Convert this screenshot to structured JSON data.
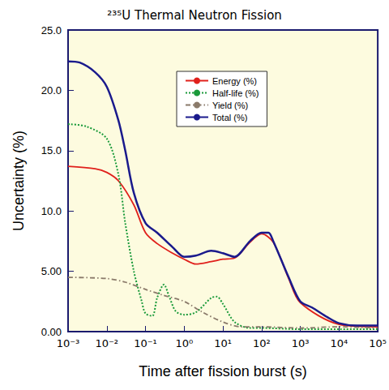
{
  "chart_data": {
    "type": "line",
    "title": "²³⁵U Thermal Neutron Fission",
    "x_label": "Time after fission burst (s)",
    "y_label": "Uncertainty (%)",
    "log": "x",
    "grid": false,
    "legend": "upper center",
    "xlim": [
      0.001,
      100000
    ],
    "xticks": [
      {
        "value": 0.001,
        "label": "10⁻³"
      },
      {
        "value": 0.01,
        "label": "10⁻²"
      },
      {
        "value": 0.1,
        "label": "10⁻¹"
      },
      {
        "value": 1,
        "label": "10⁰"
      },
      {
        "value": 10,
        "label": "10¹"
      },
      {
        "value": 100,
        "label": "10²"
      },
      {
        "value": 1000,
        "label": "10³"
      },
      {
        "value": 10000,
        "label": "10⁴"
      },
      {
        "value": 100000,
        "label": "10⁵"
      }
    ],
    "ylim": [
      0,
      25
    ],
    "yticks": [
      {
        "value": 0,
        "label": "0.00"
      },
      {
        "value": 5,
        "label": "5.00"
      },
      {
        "value": 10,
        "label": "10.0"
      },
      {
        "value": 15,
        "label": "15.0"
      },
      {
        "value": 20,
        "label": "20.0"
      },
      {
        "value": 25,
        "label": "25.0"
      }
    ],
    "series": [
      {
        "name": "Energy (%)",
        "color": "#e0201b",
        "line_style": "solid",
        "x": [
          0.001,
          0.005,
          0.01,
          0.02,
          0.05,
          0.1,
          0.2,
          0.5,
          1,
          2,
          5,
          10,
          20,
          50,
          100,
          200,
          500,
          1000,
          10000,
          100000
        ],
        "values": [
          13.7,
          13.5,
          13.2,
          12.5,
          10.5,
          8.2,
          7.3,
          6.5,
          6.0,
          5.6,
          5.8,
          6.0,
          6.1,
          7.4,
          8.1,
          7.4,
          4.4,
          2.4,
          0.6,
          0.4
        ]
      },
      {
        "name": "Half-life (%)",
        "color": "#1a9a3a",
        "line_style": "dotted",
        "x": [
          0.001,
          0.003,
          0.01,
          0.02,
          0.03,
          0.05,
          0.08,
          0.1,
          0.15,
          0.2,
          0.3,
          0.4,
          0.6,
          1,
          2,
          5,
          7,
          10,
          20,
          50,
          100,
          1000,
          10000,
          100000
        ],
        "values": [
          17.2,
          17.0,
          16.0,
          13.0,
          9.0,
          5.0,
          2.5,
          1.5,
          1.3,
          2.8,
          3.9,
          3.0,
          1.7,
          1.4,
          1.6,
          2.8,
          2.9,
          2.3,
          0.8,
          0.3,
          0.3,
          0.2,
          0.2,
          0.2
        ]
      },
      {
        "name": "Yield (%)",
        "color": "#8a7a6a",
        "line_style": "dashdot",
        "x": [
          0.001,
          0.01,
          0.03,
          0.1,
          0.3,
          1,
          3,
          10,
          30,
          100,
          1000,
          10000,
          100000
        ],
        "values": [
          4.5,
          4.4,
          4.1,
          3.5,
          3.0,
          2.5,
          1.6,
          0.8,
          0.4,
          0.4,
          0.3,
          0.4,
          0.3
        ]
      },
      {
        "name": "Total (%)",
        "color": "#1a1a8c",
        "line_style": "solid",
        "x": [
          0.001,
          0.002,
          0.005,
          0.01,
          0.02,
          0.03,
          0.05,
          0.1,
          0.2,
          0.5,
          1,
          2,
          5,
          10,
          20,
          50,
          100,
          150,
          200,
          500,
          1000,
          2000,
          5000,
          10000,
          30000,
          100000
        ],
        "values": [
          22.4,
          22.3,
          21.5,
          20.3,
          17.5,
          15.0,
          11.5,
          9.0,
          8.2,
          7.0,
          6.2,
          6.3,
          6.7,
          6.5,
          6.2,
          7.5,
          8.2,
          8.2,
          7.5,
          4.5,
          2.5,
          2.0,
          1.2,
          0.7,
          0.5,
          0.5
        ]
      }
    ]
  }
}
